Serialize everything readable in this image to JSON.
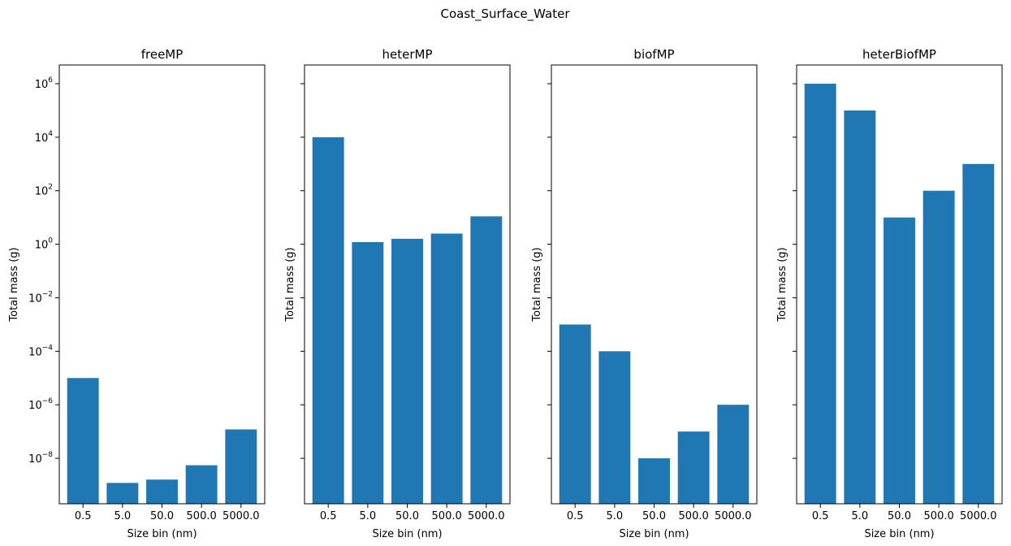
{
  "figure": {
    "suptitle": "Coast_Surface_Water"
  },
  "colors": {
    "bar": "#1f77b4",
    "axis": "#000000",
    "background": "#ffffff"
  },
  "chart_data": [
    {
      "type": "bar",
      "title": "freeMP",
      "xlabel": "Size bin (nm)",
      "ylabel": "Total mass (g)",
      "yscale": "log",
      "ylim": [
        2e-10,
        5000000.0
      ],
      "yticks": [
        1e-08,
        1e-06,
        0.0001,
        0.01,
        1.0,
        100.0,
        10000.0,
        1000000.0
      ],
      "ytick_labels": [
        [
          "10",
          "−8"
        ],
        [
          "10",
          "−6"
        ],
        [
          "10",
          "−4"
        ],
        [
          "10",
          "−2"
        ],
        [
          "10",
          "0"
        ],
        [
          "10",
          "2"
        ],
        [
          "10",
          "4"
        ],
        [
          "10",
          "6"
        ]
      ],
      "show_ytick_labels": true,
      "categories": [
        "0.5",
        "5.0",
        "50.0",
        "500.0",
        "5000.0"
      ],
      "values": [
        1e-05,
        1.2e-09,
        1.6e-09,
        5.5e-09,
        1.2e-07
      ],
      "grid": false,
      "legend": "none"
    },
    {
      "type": "bar",
      "title": "heterMP",
      "xlabel": "Size bin (nm)",
      "ylabel": "Total mass (g)",
      "yscale": "log",
      "ylim": [
        2e-10,
        5000000.0
      ],
      "yticks": [
        1e-08,
        1e-06,
        0.0001,
        0.01,
        1.0,
        100.0,
        10000.0,
        1000000.0
      ],
      "show_ytick_labels": false,
      "categories": [
        "0.5",
        "5.0",
        "50.0",
        "500.0",
        "5000.0"
      ],
      "values": [
        10000.0,
        1.2,
        1.6,
        2.5,
        11
      ],
      "grid": false,
      "legend": "none"
    },
    {
      "type": "bar",
      "title": "biofMP",
      "xlabel": "Size bin (nm)",
      "ylabel": "Total mass (g)",
      "yscale": "log",
      "ylim": [
        2e-10,
        5000000.0
      ],
      "yticks": [
        1e-08,
        1e-06,
        0.0001,
        0.01,
        1.0,
        100.0,
        10000.0,
        1000000.0
      ],
      "show_ytick_labels": false,
      "categories": [
        "0.5",
        "5.0",
        "50.0",
        "500.0",
        "5000.0"
      ],
      "values": [
        0.001,
        0.0001,
        1e-08,
        1e-07,
        1e-06
      ],
      "grid": false,
      "legend": "none"
    },
    {
      "type": "bar",
      "title": "heterBiofMP",
      "xlabel": "Size bin (nm)",
      "ylabel": "Total mass (g)",
      "yscale": "log",
      "ylim": [
        2e-10,
        5000000.0
      ],
      "yticks": [
        1e-08,
        1e-06,
        0.0001,
        0.01,
        1.0,
        100.0,
        10000.0,
        1000000.0
      ],
      "show_ytick_labels": false,
      "categories": [
        "0.5",
        "5.0",
        "50.0",
        "500.0",
        "5000.0"
      ],
      "values": [
        1000000.0,
        100000.0,
        10,
        100,
        1000
      ],
      "grid": false,
      "legend": "none"
    }
  ]
}
